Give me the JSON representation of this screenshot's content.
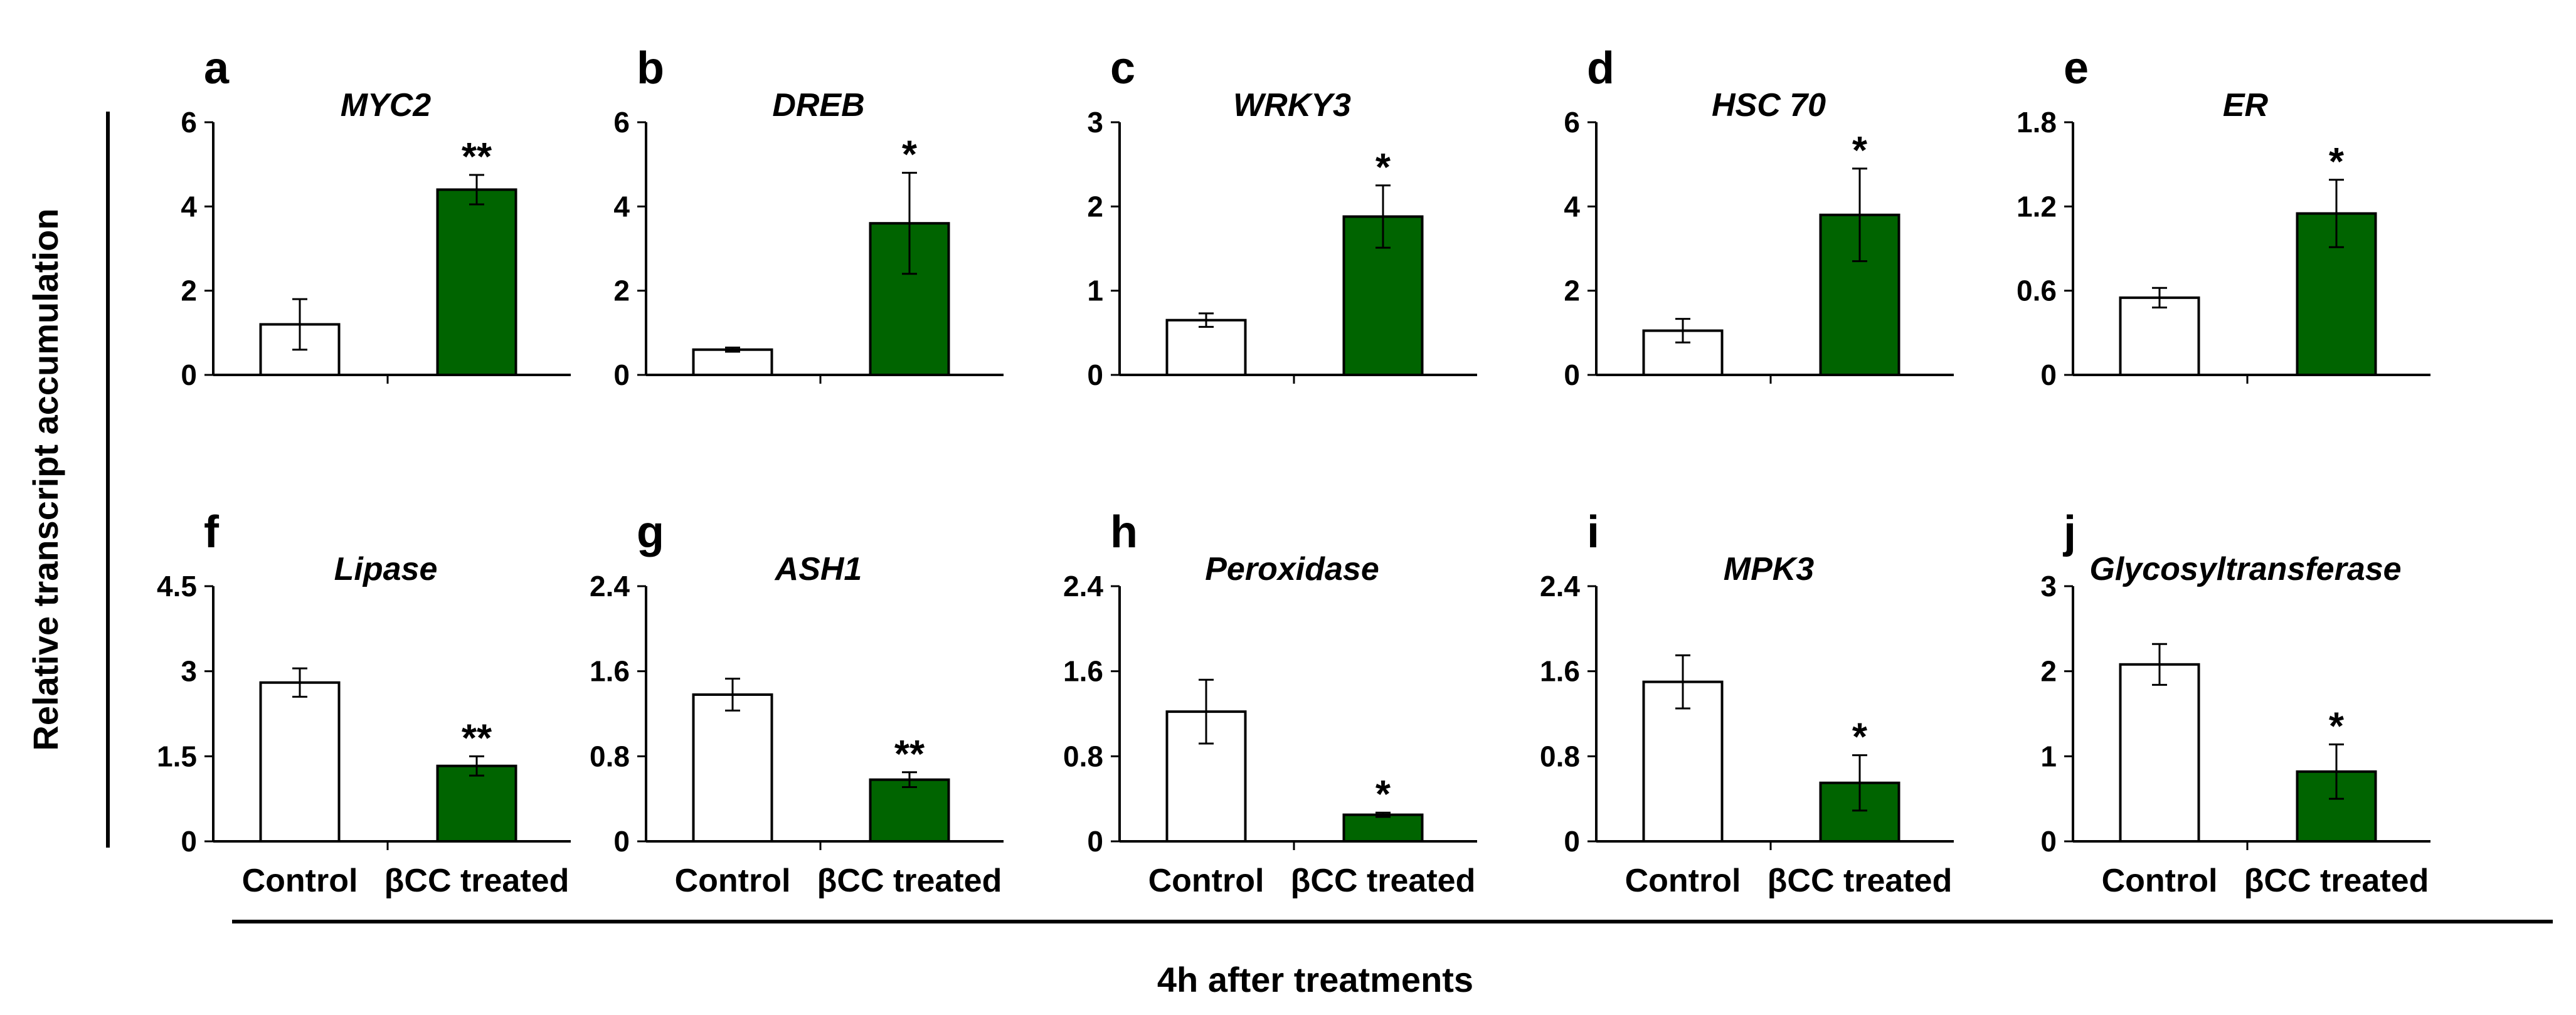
{
  "figure": {
    "ylabel": "Relative transcript accumulation",
    "xlabel": "4h after treatments"
  },
  "colors": {
    "control": "#ffffff",
    "treated": "#006400",
    "axis": "#000000"
  },
  "chart_data": [
    {
      "panel": "a",
      "type": "bar",
      "title": "MYC2",
      "categories": [
        "Control",
        "βCC treated"
      ],
      "values": [
        1.2,
        4.4
      ],
      "errors": [
        0.6,
        0.35
      ],
      "significance": [
        "",
        "**"
      ],
      "yticks": [
        "0",
        "2",
        "4",
        "6"
      ],
      "ylim": [
        0,
        6
      ]
    },
    {
      "panel": "b",
      "type": "bar",
      "title": "DREB",
      "categories": [
        "Control",
        "βCC treated"
      ],
      "values": [
        0.6,
        3.6
      ],
      "errors": [
        0.05,
        1.2
      ],
      "significance": [
        "",
        "*"
      ],
      "yticks": [
        "0",
        "2",
        "4",
        "6"
      ],
      "ylim": [
        0,
        6
      ]
    },
    {
      "panel": "c",
      "type": "bar",
      "title": "WRKY3",
      "categories": [
        "Control",
        "βCC treated"
      ],
      "values": [
        0.65,
        1.88
      ],
      "errors": [
        0.08,
        0.37
      ],
      "significance": [
        "",
        "*"
      ],
      "yticks": [
        "0",
        "1",
        "2",
        "3"
      ],
      "ylim": [
        0,
        3
      ]
    },
    {
      "panel": "d",
      "type": "bar",
      "title": "HSC 70",
      "categories": [
        "Control",
        "βCC treated"
      ],
      "values": [
        1.05,
        3.8
      ],
      "errors": [
        0.28,
        1.1
      ],
      "significance": [
        "",
        "*"
      ],
      "yticks": [
        "0",
        "2",
        "4",
        "6"
      ],
      "ylim": [
        0,
        6
      ]
    },
    {
      "panel": "e",
      "type": "bar",
      "title": "ER",
      "categories": [
        "Control",
        "βCC treated"
      ],
      "values": [
        0.55,
        1.15
      ],
      "errors": [
        0.07,
        0.24
      ],
      "significance": [
        "",
        "*"
      ],
      "yticks": [
        "0",
        "0.6",
        "1.2",
        "1.8"
      ],
      "ylim": [
        0,
        1.8
      ]
    },
    {
      "panel": "f",
      "type": "bar",
      "title": "Lipase",
      "categories": [
        "Control",
        "βCC treated"
      ],
      "values": [
        2.8,
        1.33
      ],
      "errors": [
        0.25,
        0.17
      ],
      "significance": [
        "",
        "**"
      ],
      "yticks": [
        "0",
        "1.5",
        "3",
        "4.5"
      ],
      "ylim": [
        0,
        4.5
      ]
    },
    {
      "panel": "g",
      "type": "bar",
      "title": "ASH1",
      "categories": [
        "Control",
        "βCC treated"
      ],
      "values": [
        1.38,
        0.58
      ],
      "errors": [
        0.15,
        0.07
      ],
      "significance": [
        "",
        "**"
      ],
      "yticks": [
        "0",
        "0.8",
        "1.6",
        "2.4"
      ],
      "ylim": [
        0,
        2.4
      ]
    },
    {
      "panel": "h",
      "type": "bar",
      "title": "Peroxidase",
      "categories": [
        "Control",
        "βCC treated"
      ],
      "values": [
        1.22,
        0.25
      ],
      "errors": [
        0.3,
        0.02
      ],
      "significance": [
        "",
        "*"
      ],
      "yticks": [
        "0",
        "0.8",
        "1.6",
        "2.4"
      ],
      "ylim": [
        0,
        2.4
      ]
    },
    {
      "panel": "i",
      "type": "bar",
      "title": "MPK3",
      "categories": [
        "Control",
        "βCC treated"
      ],
      "values": [
        1.5,
        0.55
      ],
      "errors": [
        0.25,
        0.26
      ],
      "significance": [
        "",
        "*"
      ],
      "yticks": [
        "0",
        "0.8",
        "1.6",
        "2.4"
      ],
      "ylim": [
        0,
        2.4
      ]
    },
    {
      "panel": "j",
      "type": "bar",
      "title": "Glycosyltransferase",
      "categories": [
        "Control",
        "βCC treated"
      ],
      "values": [
        2.08,
        0.82
      ],
      "errors": [
        0.24,
        0.32
      ],
      "significance": [
        "",
        "*"
      ],
      "yticks": [
        "0",
        "1",
        "2",
        "3"
      ],
      "ylim": [
        0,
        3
      ]
    }
  ]
}
